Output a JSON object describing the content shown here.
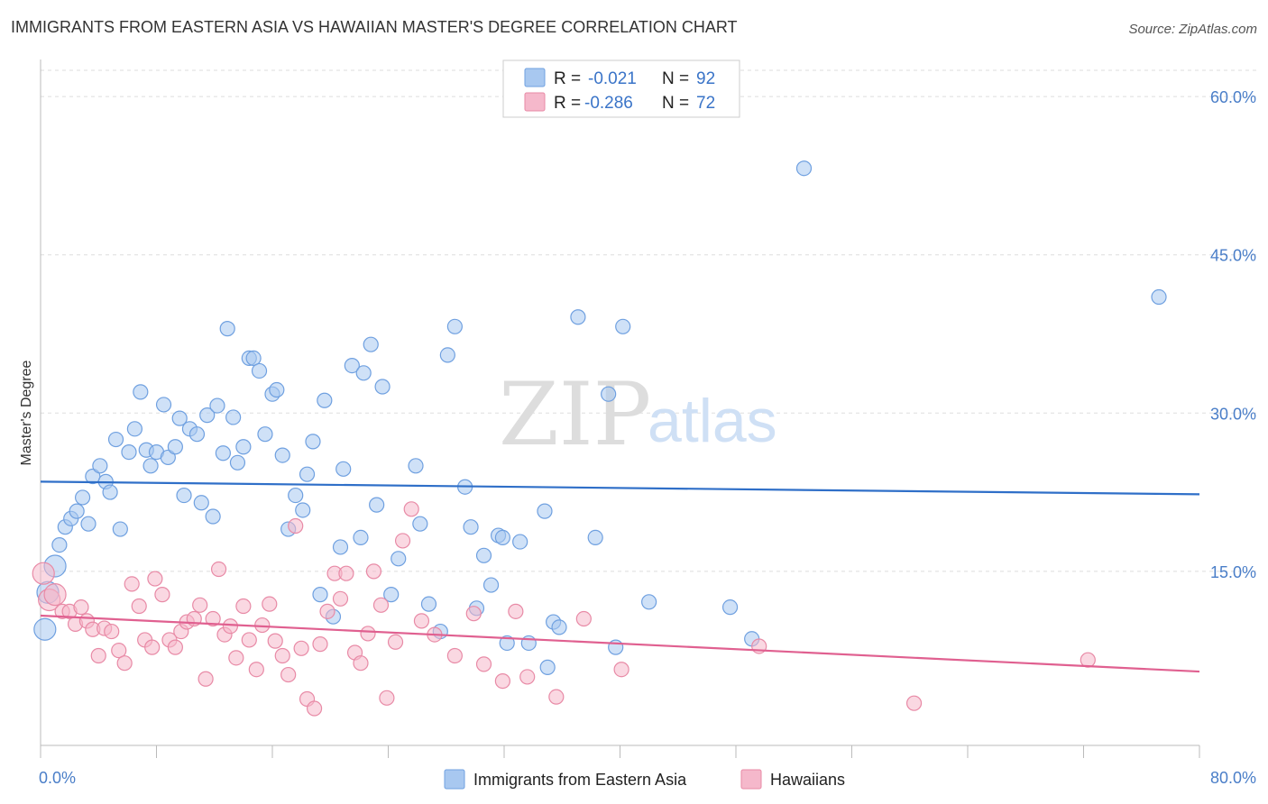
{
  "header": {
    "title": "IMMIGRANTS FROM EASTERN ASIA VS HAWAIIAN MASTER'S DEGREE CORRELATION CHART",
    "source": "Source: ZipAtlas.com"
  },
  "watermark": {
    "zip": "ZIP",
    "atlas": "atlas"
  },
  "legend": {
    "r_label": "R =",
    "n_label": "N =",
    "rows": [
      {
        "r": "-0.021",
        "n": "92",
        "color": "#a8c8f0"
      },
      {
        "r": "-0.286",
        "n": "72",
        "color": "#f5b8cb"
      }
    ]
  },
  "chart_data": {
    "type": "scatter",
    "title": "IMMIGRANTS FROM EASTERN ASIA VS HAWAIIAN MASTER'S DEGREE CORRELATION CHART",
    "xlabel": "",
    "ylabel": "Master's Degree",
    "xlim": [
      0,
      80
    ],
    "ylim": [
      -1.5,
      63
    ],
    "x_tick_labels": [
      "0.0%",
      "80.0%"
    ],
    "y_ticks": [
      15,
      30,
      45,
      60
    ],
    "y_tick_labels": [
      "15.0%",
      "30.0%",
      "45.0%",
      "60.0%"
    ],
    "grid": true,
    "legend_position": "top-center",
    "series": [
      {
        "name": "Immigrants from Eastern Asia",
        "color": "#6fa0e0",
        "fill": "#a8c8f0",
        "trend": {
          "x": [
            0,
            80
          ],
          "y": [
            23.5,
            22.3
          ],
          "color": "#2f6fc8"
        },
        "points": [
          [
            0.3,
            9.5
          ],
          [
            0.5,
            13
          ],
          [
            1.0,
            15.5
          ],
          [
            1.3,
            17.5
          ],
          [
            1.7,
            19.2
          ],
          [
            2.1,
            20
          ],
          [
            2.5,
            20.7
          ],
          [
            2.9,
            22
          ],
          [
            3.3,
            19.5
          ],
          [
            3.6,
            24
          ],
          [
            4.1,
            25
          ],
          [
            4.5,
            23.5
          ],
          [
            4.8,
            22.5
          ],
          [
            5.2,
            27.5
          ],
          [
            5.5,
            19
          ],
          [
            6.1,
            26.3
          ],
          [
            6.5,
            28.5
          ],
          [
            6.9,
            32
          ],
          [
            7.3,
            26.5
          ],
          [
            7.6,
            25
          ],
          [
            8.0,
            26.3
          ],
          [
            8.5,
            30.8
          ],
          [
            8.8,
            25.8
          ],
          [
            9.3,
            26.8
          ],
          [
            9.6,
            29.5
          ],
          [
            9.9,
            22.2
          ],
          [
            10.3,
            28.5
          ],
          [
            10.8,
            28
          ],
          [
            11.1,
            21.5
          ],
          [
            11.5,
            29.8
          ],
          [
            11.9,
            20.2
          ],
          [
            12.2,
            30.7
          ],
          [
            12.6,
            26.2
          ],
          [
            12.9,
            38
          ],
          [
            13.3,
            29.6
          ],
          [
            13.6,
            25.3
          ],
          [
            14.0,
            26.8
          ],
          [
            14.4,
            35.2
          ],
          [
            14.7,
            35.2
          ],
          [
            15.1,
            34
          ],
          [
            15.5,
            28
          ],
          [
            16.0,
            31.8
          ],
          [
            16.3,
            32.2
          ],
          [
            16.7,
            26
          ],
          [
            17.1,
            19
          ],
          [
            17.6,
            22.2
          ],
          [
            18.1,
            20.8
          ],
          [
            18.4,
            24.2
          ],
          [
            18.8,
            27.3
          ],
          [
            19.3,
            12.8
          ],
          [
            19.6,
            31.2
          ],
          [
            20.2,
            10.7
          ],
          [
            20.7,
            17.3
          ],
          [
            20.9,
            24.7
          ],
          [
            21.5,
            34.5
          ],
          [
            22.1,
            18.2
          ],
          [
            22.3,
            33.8
          ],
          [
            22.8,
            36.5
          ],
          [
            23.2,
            21.3
          ],
          [
            23.6,
            32.5
          ],
          [
            24.2,
            12.8
          ],
          [
            24.7,
            16.2
          ],
          [
            25.9,
            25
          ],
          [
            26.2,
            19.5
          ],
          [
            26.8,
            11.9
          ],
          [
            27.6,
            9.3
          ],
          [
            28.1,
            35.5
          ],
          [
            28.6,
            38.2
          ],
          [
            29.3,
            23
          ],
          [
            29.7,
            19.2
          ],
          [
            30.1,
            11.5
          ],
          [
            30.6,
            16.5
          ],
          [
            31.1,
            13.7
          ],
          [
            31.6,
            18.4
          ],
          [
            31.9,
            18.2
          ],
          [
            32.2,
            8.2
          ],
          [
            33.1,
            17.8
          ],
          [
            33.7,
            8.2
          ],
          [
            34.8,
            20.7
          ],
          [
            35.0,
            5.9
          ],
          [
            35.4,
            10.2
          ],
          [
            35.8,
            9.7
          ],
          [
            37.1,
            39.1
          ],
          [
            38.3,
            18.2
          ],
          [
            39.2,
            31.8
          ],
          [
            39.7,
            7.8
          ],
          [
            40.2,
            38.2
          ],
          [
            42.0,
            12.1
          ],
          [
            47.6,
            11.6
          ],
          [
            49.1,
            8.6
          ],
          [
            52.7,
            53.2
          ],
          [
            77.2,
            41
          ]
        ]
      },
      {
        "name": "Hawaiians",
        "color": "#e88aa6",
        "fill": "#f5b8cb",
        "trend": {
          "x": [
            0,
            80
          ],
          "y": [
            10.8,
            5.5
          ],
          "color": "#e06090"
        },
        "points": [
          [
            0.2,
            14.8
          ],
          [
            0.6,
            12.3
          ],
          [
            1.0,
            12.8
          ],
          [
            1.5,
            11.2
          ],
          [
            2.0,
            11.2
          ],
          [
            2.4,
            10
          ],
          [
            2.8,
            11.6
          ],
          [
            3.2,
            10.3
          ],
          [
            3.6,
            9.5
          ],
          [
            4.0,
            7
          ],
          [
            4.4,
            9.6
          ],
          [
            4.9,
            9.3
          ],
          [
            5.4,
            7.5
          ],
          [
            5.8,
            6.3
          ],
          [
            6.3,
            13.8
          ],
          [
            6.8,
            11.7
          ],
          [
            7.2,
            8.5
          ],
          [
            7.7,
            7.8
          ],
          [
            7.9,
            14.3
          ],
          [
            8.4,
            12.8
          ],
          [
            8.9,
            8.5
          ],
          [
            9.3,
            7.8
          ],
          [
            9.7,
            9.3
          ],
          [
            10.1,
            10.2
          ],
          [
            10.6,
            10.5
          ],
          [
            11.0,
            11.8
          ],
          [
            11.4,
            4.8
          ],
          [
            11.9,
            10.5
          ],
          [
            12.3,
            15.2
          ],
          [
            12.7,
            9
          ],
          [
            13.1,
            9.8
          ],
          [
            13.5,
            6.8
          ],
          [
            14.0,
            11.7
          ],
          [
            14.4,
            8.5
          ],
          [
            14.9,
            5.7
          ],
          [
            15.3,
            9.9
          ],
          [
            15.8,
            11.9
          ],
          [
            16.2,
            8.4
          ],
          [
            16.7,
            7
          ],
          [
            17.1,
            5.2
          ],
          [
            17.6,
            19.3
          ],
          [
            18.0,
            7.7
          ],
          [
            18.4,
            2.9
          ],
          [
            18.9,
            2
          ],
          [
            19.3,
            8.1
          ],
          [
            19.8,
            11.2
          ],
          [
            20.3,
            14.8
          ],
          [
            20.7,
            12.4
          ],
          [
            21.1,
            14.8
          ],
          [
            21.7,
            7.3
          ],
          [
            22.1,
            6.3
          ],
          [
            22.6,
            9.1
          ],
          [
            23.0,
            15
          ],
          [
            23.5,
            11.8
          ],
          [
            23.9,
            3
          ],
          [
            24.5,
            8.3
          ],
          [
            25.0,
            17.9
          ],
          [
            25.6,
            20.9
          ],
          [
            26.3,
            10.3
          ],
          [
            27.2,
            9
          ],
          [
            28.6,
            7
          ],
          [
            29.9,
            11
          ],
          [
            30.6,
            6.2
          ],
          [
            31.9,
            4.6
          ],
          [
            32.8,
            11.2
          ],
          [
            33.6,
            5
          ],
          [
            35.6,
            3.1
          ],
          [
            37.5,
            10.5
          ],
          [
            40.1,
            5.7
          ],
          [
            49.6,
            7.9
          ],
          [
            60.3,
            2.5
          ],
          [
            72.3,
            6.6
          ]
        ]
      }
    ]
  }
}
